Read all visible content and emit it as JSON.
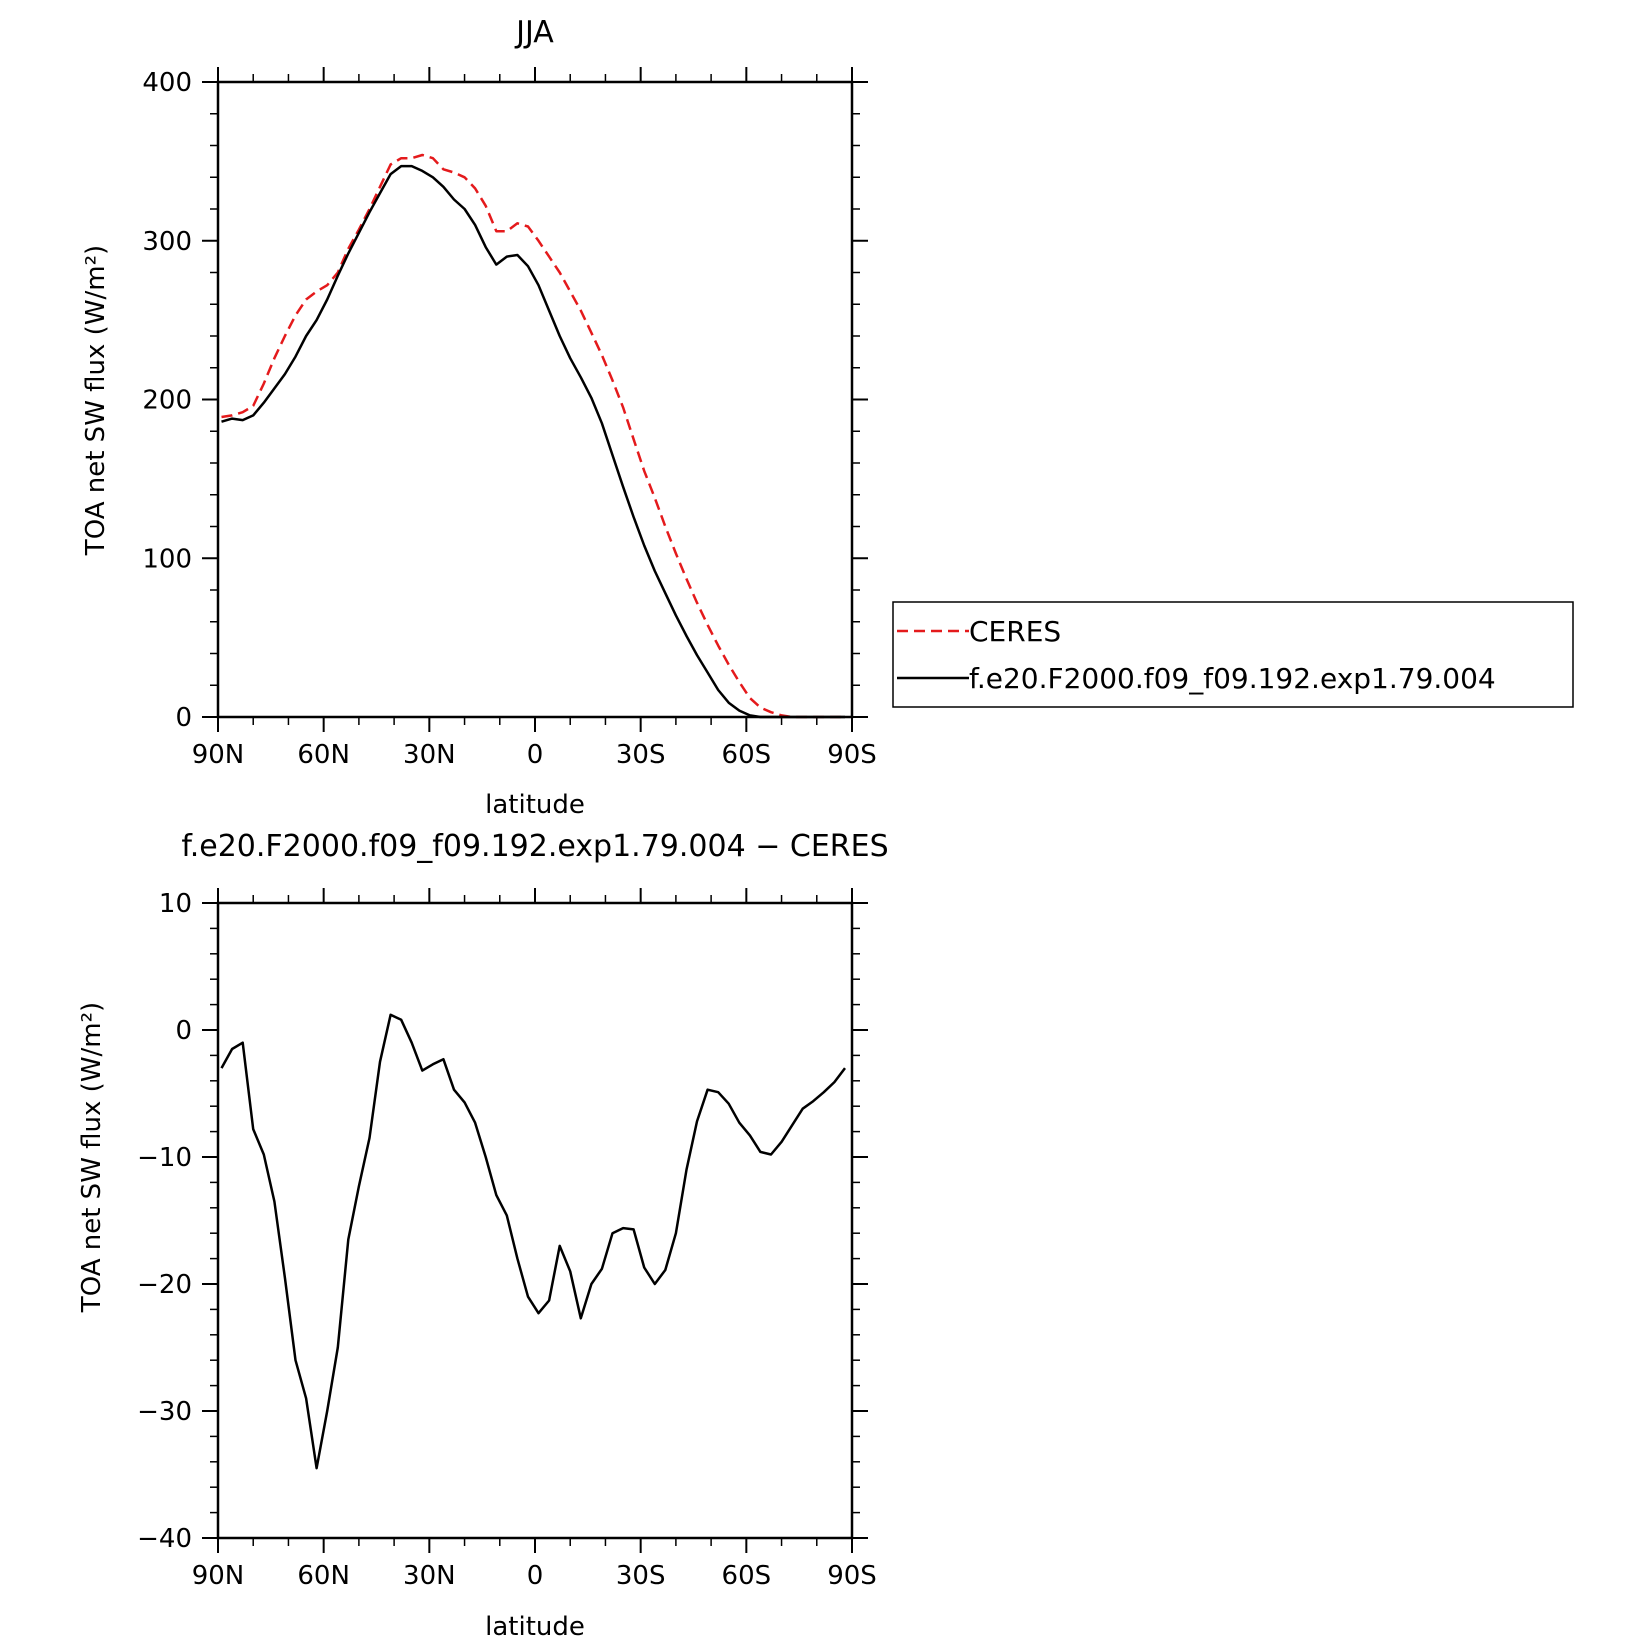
{
  "colors": {
    "ceres": "#e41a1c",
    "model": "#000000",
    "frame": "#000000"
  },
  "legend": {
    "entries": [
      {
        "label": "CERES",
        "color": "#e41a1c",
        "dash": "dashed"
      },
      {
        "label": "f.e20.F2000.f09_f09.192.exp1.79.004",
        "color": "#000000",
        "dash": "solid"
      }
    ]
  },
  "chart_data": [
    {
      "type": "line",
      "title": "JJA",
      "xlabel": "latitude",
      "ylabel": "TOA net SW flux (W/m²)",
      "xlim": [
        90,
        -90
      ],
      "ylim": [
        0,
        400
      ],
      "x_ticks": [
        {
          "value": 90,
          "label": "90N"
        },
        {
          "value": 60,
          "label": "60N"
        },
        {
          "value": 30,
          "label": "30N"
        },
        {
          "value": 0,
          "label": "0"
        },
        {
          "value": -30,
          "label": "30S"
        },
        {
          "value": -60,
          "label": "60S"
        },
        {
          "value": -90,
          "label": "90S"
        }
      ],
      "y_ticks": [
        {
          "value": 0,
          "label": "0"
        },
        {
          "value": 100,
          "label": "100"
        },
        {
          "value": 200,
          "label": "200"
        },
        {
          "value": 300,
          "label": "300"
        },
        {
          "value": 400,
          "label": "400"
        }
      ],
      "grid": false,
      "legend_position": "right",
      "series": [
        {
          "name": "CERES",
          "x": [
            89,
            86,
            83,
            80,
            77,
            74,
            71,
            68,
            65,
            62,
            59,
            56,
            53,
            50,
            47,
            44,
            41,
            38,
            35,
            32,
            29,
            26,
            23,
            20,
            17,
            14,
            11,
            8,
            5,
            2,
            -1,
            -4,
            -7,
            -10,
            -13,
            -16,
            -19,
            -22,
            -25,
            -28,
            -31,
            -34,
            -37,
            -40,
            -43,
            -46,
            -49,
            -52,
            -55,
            -58,
            -61,
            -64,
            -67,
            -70,
            -73,
            -76,
            -79,
            -82,
            -85,
            -88
          ],
          "values": [
            189,
            190,
            192,
            196,
            210,
            226,
            240,
            253,
            263,
            268,
            272,
            280,
            295,
            307,
            320,
            334,
            348,
            352,
            352,
            354,
            352,
            345,
            343,
            340,
            333,
            322,
            306,
            306,
            311,
            309,
            300,
            290,
            280,
            268,
            256,
            242,
            228,
            212,
            195,
            175,
            155,
            138,
            120,
            103,
            87,
            72,
            58,
            45,
            33,
            22,
            12,
            6,
            3,
            1,
            0,
            0,
            0,
            0,
            0,
            0
          ]
        },
        {
          "name": "f.e20.F2000.f09_f09.192.exp1.79.004",
          "x": [
            89,
            86,
            83,
            80,
            77,
            74,
            71,
            68,
            65,
            62,
            59,
            56,
            53,
            50,
            47,
            44,
            41,
            38,
            35,
            32,
            29,
            26,
            23,
            20,
            17,
            14,
            11,
            8,
            5,
            2,
            -1,
            -4,
            -7,
            -10,
            -13,
            -16,
            -19,
            -22,
            -25,
            -28,
            -31,
            -34,
            -37,
            -40,
            -43,
            -46,
            -49,
            -52,
            -55,
            -58,
            -61,
            -64,
            -67,
            -70,
            -73,
            -76,
            -79,
            -82,
            -85,
            -88
          ],
          "values": [
            186,
            188,
            187,
            190,
            198,
            207,
            216,
            227,
            240,
            250,
            263,
            278,
            292,
            305,
            318,
            330,
            342,
            347,
            347,
            344,
            340,
            334,
            326,
            320,
            310,
            296,
            285,
            290,
            291,
            284,
            272,
            256,
            240,
            226,
            214,
            201,
            185,
            165,
            145,
            126,
            108,
            92,
            78,
            64,
            51,
            39,
            28,
            17,
            9,
            4,
            1,
            0,
            0,
            0,
            0,
            0,
            0,
            0,
            0,
            0
          ]
        }
      ]
    },
    {
      "type": "line",
      "title": "f.e20.F2000.f09_f09.192.exp1.79.004 − CERES",
      "xlabel": "latitude",
      "ylabel": "TOA net SW flux (W/m²)",
      "xlim": [
        90,
        -90
      ],
      "ylim": [
        -40,
        10
      ],
      "x_ticks": [
        {
          "value": 90,
          "label": "90N"
        },
        {
          "value": 60,
          "label": "60N"
        },
        {
          "value": 30,
          "label": "30N"
        },
        {
          "value": 0,
          "label": "0"
        },
        {
          "value": -30,
          "label": "30S"
        },
        {
          "value": -60,
          "label": "60S"
        },
        {
          "value": -90,
          "label": "90S"
        }
      ],
      "y_ticks": [
        {
          "value": -40,
          "label": "−40"
        },
        {
          "value": -30,
          "label": "−30"
        },
        {
          "value": -20,
          "label": "−20"
        },
        {
          "value": -10,
          "label": "−10"
        },
        {
          "value": 0,
          "label": "0"
        },
        {
          "value": 10,
          "label": "10"
        }
      ],
      "grid": false,
      "series": [
        {
          "x": [
            89,
            86,
            83,
            80,
            77,
            74,
            71,
            68,
            65,
            62,
            59,
            56,
            53,
            50,
            47,
            44,
            41,
            38,
            35,
            32,
            29,
            26,
            23,
            20,
            17,
            14,
            11,
            8,
            5,
            2,
            -1,
            -4,
            -7,
            -10,
            -13,
            -16,
            -19,
            -22,
            -25,
            -28,
            -31,
            -34,
            -37,
            -40,
            -43,
            -46,
            -49,
            -52,
            -55,
            -58,
            -61,
            -64,
            -67,
            -70,
            -73,
            -76,
            -79,
            -82,
            -85,
            -88
          ],
          "values": [
            -3,
            -1.5,
            -1,
            -7.8,
            -9.8,
            -13.5,
            -19.5,
            -26,
            -29,
            -34.5,
            -30,
            -25,
            -16.5,
            -12.3,
            -8.5,
            -2.5,
            1.2,
            0.8,
            -1,
            -3.2,
            -2.7,
            -2.3,
            -4.7,
            -5.7,
            -7.3,
            -10,
            -13,
            -14.6,
            -18,
            -21,
            -22.3,
            -21.3,
            -17,
            -19,
            -22.7,
            -20,
            -18.8,
            -16,
            -15.6,
            -15.7,
            -18.7,
            -20,
            -18.9,
            -16,
            -11,
            -7.2,
            -4.7,
            -4.9,
            -5.8,
            -7.3,
            -8.3,
            -9.6,
            -9.8,
            -8.8,
            -7.5,
            -6.2,
            -5.6,
            -4.9,
            -4.1,
            -3
          ]
        }
      ]
    }
  ]
}
